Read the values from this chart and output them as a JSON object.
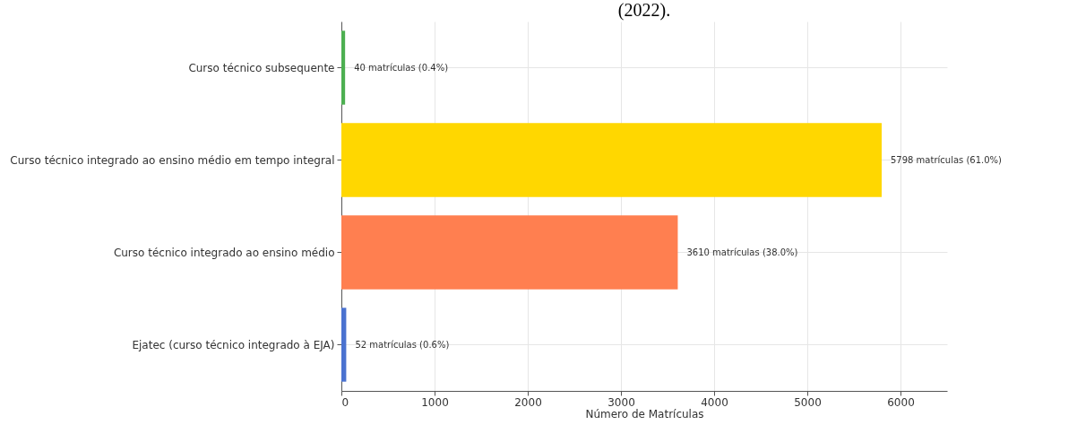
{
  "chart_data": {
    "type": "bar",
    "orientation": "horizontal",
    "title": "(2022).",
    "xlabel": "Número de Matrículas",
    "categories": [
      "Curso técnico subsequente",
      "Curso técnico integrado ao ensino médio em tempo integral",
      "Curso técnico integrado ao ensino médio",
      "Ejatec (curso técnico integrado à EJA)"
    ],
    "values": [
      40,
      5798,
      3610,
      52
    ],
    "colors": [
      "#4caf50",
      "#ffd700",
      "#ff7f50",
      "#4a72d0"
    ],
    "value_labels": [
      "40 matrículas (0.4%)",
      "5798 matrículas (61.0%)",
      "3610 matrículas (38.0%)",
      "52 matrículas (0.6%)"
    ],
    "xlim": [
      0,
      6500
    ],
    "xticks": [
      0,
      1000,
      2000,
      3000,
      4000,
      5000,
      6000
    ],
    "grid": true
  }
}
